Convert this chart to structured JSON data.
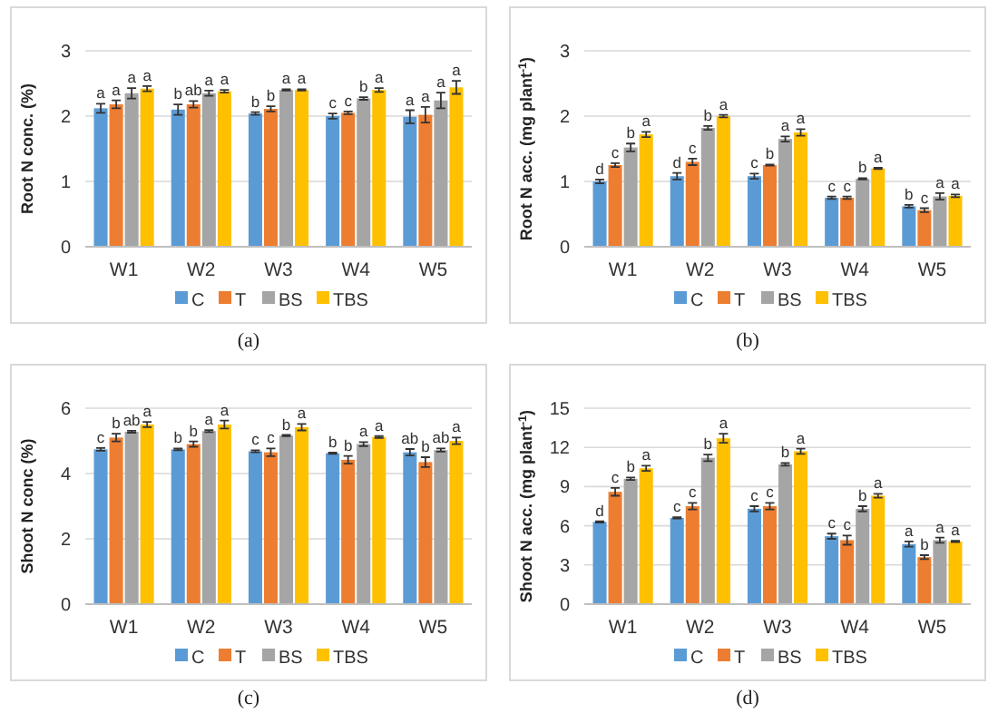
{
  "chart_data": [
    {
      "type": "bar",
      "ylabel": "Root N conc. (%)",
      "categories": [
        "W1",
        "W2",
        "W3",
        "W4",
        "W5"
      ],
      "ylim": [
        0,
        3
      ],
      "yticks": [
        0,
        1,
        2,
        3
      ],
      "grid": "y",
      "legend": "bottom",
      "annotations": [
        "(a)"
      ],
      "series": [
        {
          "name": "C",
          "color": "#5b9bd5",
          "values": [
            2.12,
            2.1,
            2.04,
            2.0,
            1.99
          ],
          "errors": [
            0.07,
            0.08,
            0.02,
            0.04,
            0.1
          ],
          "value_labels": [
            "a",
            "b",
            "b",
            "c",
            "a"
          ]
        },
        {
          "name": "T",
          "color": "#ed7d31",
          "values": [
            2.18,
            2.18,
            2.11,
            2.05,
            2.02
          ],
          "errors": [
            0.06,
            0.05,
            0.04,
            0.02,
            0.12
          ],
          "value_labels": [
            "a",
            "ab",
            "b",
            "c",
            "a"
          ]
        },
        {
          "name": "BS",
          "color": "#a5a5a5",
          "values": [
            2.35,
            2.35,
            2.4,
            2.27,
            2.24
          ],
          "errors": [
            0.08,
            0.04,
            0.01,
            0.02,
            0.12
          ],
          "value_labels": [
            "a",
            "a",
            "a",
            "b",
            "a"
          ]
        },
        {
          "name": "TBS",
          "color": "#ffc000",
          "values": [
            2.42,
            2.38,
            2.4,
            2.4,
            2.44
          ],
          "errors": [
            0.04,
            0.02,
            0.01,
            0.03,
            0.1
          ],
          "value_labels": [
            "a",
            "a",
            "a",
            "a",
            "a"
          ]
        }
      ]
    },
    {
      "type": "bar",
      "ylabel": "Root N acc. (mg plant$^{-1}$)",
      "categories": [
        "W1",
        "W2",
        "W3",
        "W4",
        "W5"
      ],
      "ylim": [
        0,
        3
      ],
      "yticks": [
        0,
        1,
        2,
        3
      ],
      "grid": "y",
      "legend": "bottom",
      "annotations": [
        "(b)"
      ],
      "series": [
        {
          "name": "C",
          "color": "#5b9bd5",
          "values": [
            1.0,
            1.08,
            1.08,
            0.75,
            0.62
          ],
          "errors": [
            0.03,
            0.05,
            0.04,
            0.02,
            0.02
          ],
          "value_labels": [
            "d",
            "d",
            "c",
            "c",
            "b"
          ]
        },
        {
          "name": "T",
          "color": "#ed7d31",
          "values": [
            1.25,
            1.3,
            1.25,
            0.75,
            0.56
          ],
          "errors": [
            0.03,
            0.05,
            0.01,
            0.02,
            0.03
          ],
          "value_labels": [
            "c",
            "c",
            "b",
            "c",
            "c"
          ]
        },
        {
          "name": "BS",
          "color": "#a5a5a5",
          "values": [
            1.52,
            1.82,
            1.65,
            1.04,
            0.77
          ],
          "errors": [
            0.06,
            0.03,
            0.04,
            0.01,
            0.05
          ],
          "value_labels": [
            "b",
            "b",
            "a",
            "b",
            "a"
          ]
        },
        {
          "name": "TBS",
          "color": "#ffc000",
          "values": [
            1.72,
            2.0,
            1.75,
            1.2,
            0.78
          ],
          "errors": [
            0.04,
            0.02,
            0.05,
            0.01,
            0.02
          ],
          "value_labels": [
            "a",
            "a",
            "a",
            "a",
            "a"
          ]
        }
      ]
    },
    {
      "type": "bar",
      "ylabel": "Shoot N conc (%)",
      "categories": [
        "W1",
        "W2",
        "W3",
        "W4",
        "W5"
      ],
      "ylim": [
        0,
        6
      ],
      "yticks": [
        0,
        2,
        4,
        6
      ],
      "grid": "y",
      "legend": "bottom",
      "annotations": [
        "(c)"
      ],
      "series": [
        {
          "name": "C",
          "color": "#5b9bd5",
          "values": [
            4.74,
            4.74,
            4.68,
            4.62,
            4.65
          ],
          "errors": [
            0.04,
            0.03,
            0.03,
            0.02,
            0.1
          ],
          "value_labels": [
            "c",
            "b",
            "c",
            "b",
            "ab"
          ]
        },
        {
          "name": "T",
          "color": "#ed7d31",
          "values": [
            5.1,
            4.9,
            4.65,
            4.42,
            4.35
          ],
          "errors": [
            0.12,
            0.08,
            0.12,
            0.12,
            0.15
          ],
          "value_labels": [
            "b",
            "b",
            "c",
            "b",
            "b"
          ]
        },
        {
          "name": "BS",
          "color": "#a5a5a5",
          "values": [
            5.28,
            5.3,
            5.16,
            4.9,
            4.72
          ],
          "errors": [
            0.03,
            0.03,
            0.02,
            0.06,
            0.05
          ],
          "value_labels": [
            "ab",
            "a",
            "b",
            "a",
            "ab"
          ]
        },
        {
          "name": "TBS",
          "color": "#ffc000",
          "values": [
            5.5,
            5.5,
            5.42,
            5.12,
            5.0
          ],
          "errors": [
            0.08,
            0.12,
            0.1,
            0.03,
            0.1
          ],
          "value_labels": [
            "a",
            "a",
            "a",
            "a",
            "a"
          ]
        }
      ]
    },
    {
      "type": "bar",
      "ylabel": "Shoot N acc. (mg plant$^{-1}$)",
      "categories": [
        "W1",
        "W2",
        "W3",
        "W4",
        "W5"
      ],
      "ylim": [
        0,
        15
      ],
      "yticks": [
        0,
        3,
        6,
        9,
        12,
        15
      ],
      "grid": "y",
      "legend": "bottom",
      "annotations": [
        "(d)"
      ],
      "series": [
        {
          "name": "C",
          "color": "#5b9bd5",
          "values": [
            6.3,
            6.6,
            7.3,
            5.2,
            4.6
          ],
          "errors": [
            0.05,
            0.05,
            0.2,
            0.2,
            0.2
          ],
          "value_labels": [
            "d",
            "c",
            "c",
            "c",
            "a"
          ]
        },
        {
          "name": "T",
          "color": "#ed7d31",
          "values": [
            8.6,
            7.5,
            7.5,
            4.9,
            3.6
          ],
          "errors": [
            0.3,
            0.25,
            0.25,
            0.35,
            0.15
          ],
          "value_labels": [
            "c",
            "c",
            "c",
            "c",
            "b"
          ]
        },
        {
          "name": "BS",
          "color": "#a5a5a5",
          "values": [
            9.6,
            11.2,
            10.7,
            7.3,
            4.9
          ],
          "errors": [
            0.1,
            0.25,
            0.1,
            0.2,
            0.2
          ],
          "value_labels": [
            "b",
            "b",
            "b",
            "b",
            "a"
          ]
        },
        {
          "name": "TBS",
          "color": "#ffc000",
          "values": [
            10.4,
            12.7,
            11.7,
            8.3,
            4.8
          ],
          "errors": [
            0.2,
            0.35,
            0.2,
            0.15,
            0.05
          ],
          "value_labels": [
            "a",
            "a",
            "a",
            "a",
            "a"
          ]
        }
      ]
    }
  ]
}
